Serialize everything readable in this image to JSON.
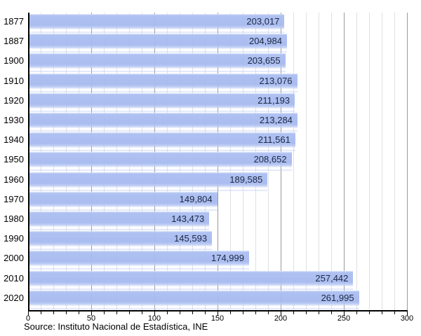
{
  "chart_data": {
    "type": "bar",
    "orientation": "horizontal",
    "title": "",
    "categories": [
      "1877",
      "1887",
      "1900",
      "1910",
      "1920",
      "1930",
      "1940",
      "1950",
      "1960",
      "1970",
      "1980",
      "1990",
      "2000",
      "2010",
      "2020"
    ],
    "values": [
      203017,
      204984,
      203655,
      213076,
      211193,
      213284,
      211561,
      208652,
      189585,
      149804,
      143473,
      145593,
      174999,
      257442,
      261995
    ],
    "value_labels": [
      "203,017",
      "204,984",
      "203,655",
      "213,076",
      "211,193",
      "213,284",
      "211,561",
      "208,652",
      "189,585",
      "149,804",
      "143,473",
      "145,593",
      "174,999",
      "257,442",
      "261,995"
    ],
    "x_axis": {
      "min": 0,
      "max": 300,
      "minor_tick_step": 10,
      "major_tick_step": 50,
      "tick_labels": [
        "0",
        "50",
        "100",
        "150",
        "200",
        "250",
        "300"
      ]
    },
    "grid": true,
    "legend": null,
    "source": "Source: Instituto Nacional de Estadística, INE",
    "colors": {
      "bar": "#a8bbee",
      "bar_value_text": "#1c2742",
      "grid_minor": "#e0e0e0",
      "grid_major": "#9a9a9a",
      "axis": "#000000"
    }
  }
}
